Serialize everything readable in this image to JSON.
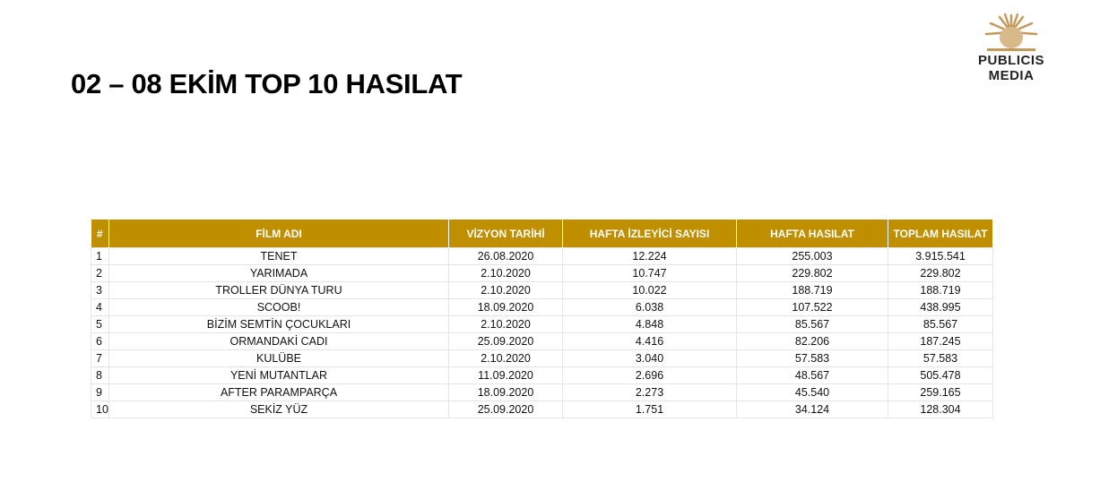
{
  "title": "02 – 08 EKİM TOP 10 HASILAT",
  "logo": {
    "line1": "PUBLICIS",
    "line2": "MEDIA",
    "color": "#C49A5A"
  },
  "header_color": "#BF8F00",
  "columns": [
    "#",
    "FİLM ADI",
    "VİZYON TARİHİ",
    "HAFTA İZLEYİCİ SAYISI",
    "HAFTA HASILAT",
    "TOPLAM HASILAT"
  ],
  "rows": [
    [
      "1",
      "TENET",
      "26.08.2020",
      "12.224",
      "255.003",
      "3.915.541"
    ],
    [
      "2",
      "YARIMADA",
      "2.10.2020",
      "10.747",
      "229.802",
      "229.802"
    ],
    [
      "3",
      "TROLLER DÜNYA TURU",
      "2.10.2020",
      "10.022",
      "188.719",
      "188.719"
    ],
    [
      "4",
      "SCOOB!",
      "18.09.2020",
      "6.038",
      "107.522",
      "438.995"
    ],
    [
      "5",
      "BİZİM SEMTİN ÇOCUKLARI",
      "2.10.2020",
      "4.848",
      "85.567",
      "85.567"
    ],
    [
      "6",
      "ORMANDAKİ CADI",
      "25.09.2020",
      "4.416",
      "82.206",
      "187.245"
    ],
    [
      "7",
      "KULÜBE",
      "2.10.2020",
      "3.040",
      "57.583",
      "57.583"
    ],
    [
      "8",
      "YENİ MUTANTLAR",
      "11.09.2020",
      "2.696",
      "48.567",
      "505.478"
    ],
    [
      "9",
      "AFTER PARAMPARÇA",
      "18.09.2020",
      "2.273",
      "45.540",
      "259.165"
    ],
    [
      "10",
      "SEKİZ YÜZ",
      "25.09.2020",
      "1.751",
      "34.124",
      "128.304"
    ]
  ]
}
